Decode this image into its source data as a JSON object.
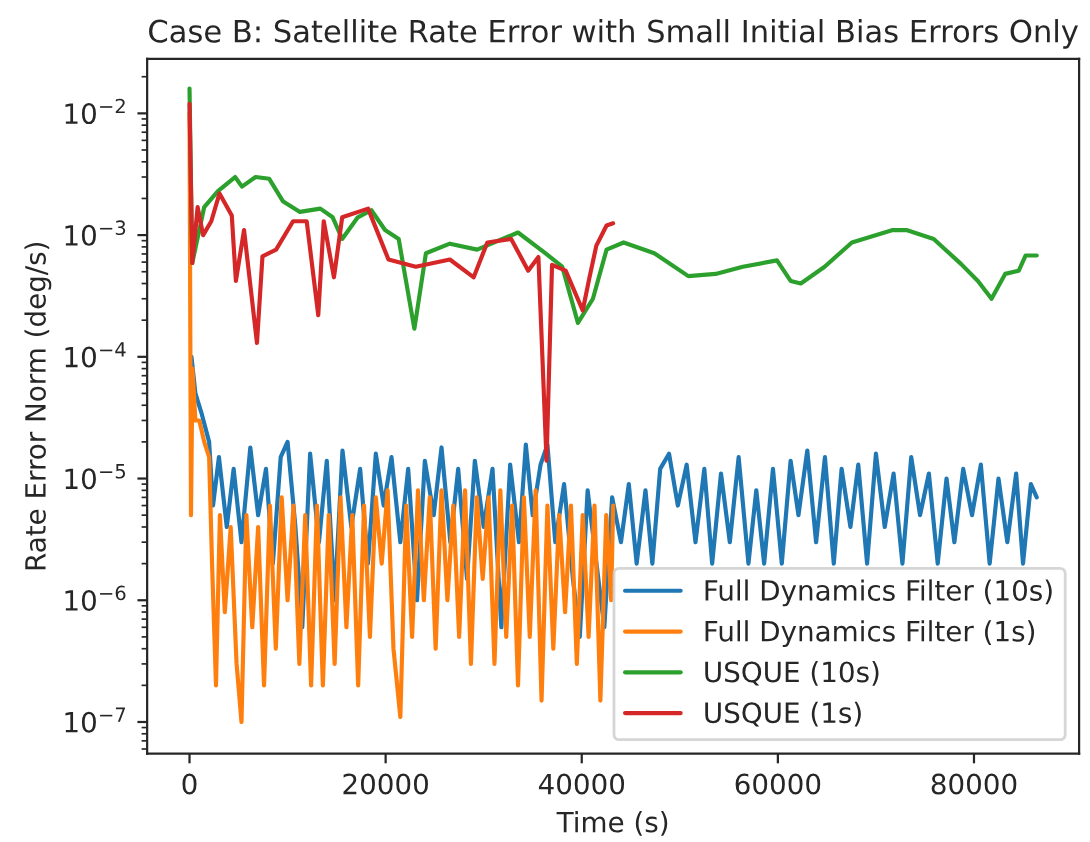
{
  "chart_data": {
    "type": "line",
    "title": "Case B: Satellite Rate Error with Small Initial Bias Errors Only",
    "xlabel": "Time (s)",
    "ylabel": "Rate Error Norm (deg/s)",
    "log": "y",
    "legend": "bottom right",
    "grid": false,
    "xlim": [
      -4320,
      90720
    ],
    "xticks": [
      0,
      20000,
      40000,
      60000,
      80000
    ],
    "ylim": [
      5.5e-08,
      0.028
    ],
    "yticks": [
      {
        "value": 1e-07,
        "label": "10$^{−7}$"
      },
      {
        "value": 1e-06,
        "label": "10$^{−6}$"
      },
      {
        "value": 1e-05,
        "label": "10$^{−5}$"
      },
      {
        "value": 0.0001,
        "label": "10$^{−4}$"
      },
      {
        "value": 0.001,
        "label": "10$^{−3}$"
      },
      {
        "value": 0.01,
        "label": "10$^{−2}$"
      }
    ],
    "series": [
      {
        "name": "Full Dynamics Filter (10s)",
        "color": "#1f77b4",
        "x": [
          200,
          600,
          1200,
          2000,
          2400,
          3000,
          3800,
          4500,
          5300,
          6200,
          7000,
          7800,
          8500,
          9300,
          10000,
          10800,
          11500,
          12300,
          13200,
          14000,
          14800,
          15600,
          16500,
          17400,
          18200,
          19000,
          19800,
          20600,
          21500,
          22300,
          23200,
          24000,
          24900,
          25700,
          26600,
          27400,
          28300,
          29100,
          30000,
          30900,
          31800,
          32700,
          33600,
          34300,
          35000,
          35800,
          36500,
          37300,
          38200,
          39100,
          39800,
          40600,
          41500,
          42300,
          43100,
          44000,
          44800,
          45600,
          46500,
          47200,
          48000,
          48900,
          49800,
          50700,
          51600,
          52500,
          53300,
          54200,
          55100,
          56000,
          57000,
          57800,
          58600,
          59500,
          60400,
          61300,
          62100,
          63000,
          63900,
          64800,
          65700,
          66500,
          67400,
          68200,
          69100,
          70000,
          70900,
          71800,
          72700,
          73600,
          74500,
          75400,
          76300,
          77200,
          78000,
          78900,
          79800,
          80700,
          81600,
          82500,
          83400,
          84300,
          85000,
          85800,
          86400
        ],
        "values": [
          0.0001,
          5e-05,
          3.5e-05,
          2e-05,
          6e-06,
          1.5e-05,
          4e-06,
          1.2e-05,
          3e-06,
          1.8e-05,
          5e-06,
          1.2e-05,
          2e-06,
          1.5e-05,
          2e-05,
          4e-06,
          6e-07,
          1.6e-05,
          3e-06,
          1.4e-05,
          1e-06,
          1.7e-05,
          4e-06,
          1.2e-05,
          2e-06,
          1.6e-05,
          6e-06,
          1.5e-05,
          3e-06,
          1.2e-05,
          1e-06,
          1.4e-05,
          5e-06,
          1.8e-05,
          3e-06,
          1.2e-05,
          1.5e-06,
          1.4e-05,
          4e-06,
          1.2e-05,
          6e-07,
          1.3e-05,
          3e-06,
          1.9e-05,
          5e-06,
          1.3e-05,
          1.9e-05,
          3e-06,
          9e-06,
          1.5e-06,
          5e-07,
          8e-06,
          2e-06,
          6e-07,
          7e-06,
          3e-06,
          9e-06,
          2e-06,
          8e-06,
          2e-06,
          1.2e-05,
          1.6e-05,
          6e-06,
          1.3e-05,
          3e-06,
          1.2e-05,
          2e-06,
          1.1e-05,
          3e-06,
          1.5e-05,
          2e-06,
          8e-06,
          2e-06,
          1.2e-05,
          2e-06,
          1.4e-05,
          5e-06,
          1.7e-05,
          3e-06,
          1.5e-05,
          2e-06,
          1.2e-05,
          4e-06,
          1.3e-05,
          2e-06,
          1.6e-05,
          4e-06,
          1.1e-05,
          2e-06,
          1.5e-05,
          5e-06,
          1.1e-05,
          2e-06,
          1e-05,
          3e-06,
          1.2e-05,
          5e-06,
          1.3e-05,
          2e-06,
          1e-05,
          3e-06,
          1.1e-05,
          2e-06,
          9e-06,
          7e-06
        ]
      },
      {
        "name": "Full Dynamics Filter (1s)",
        "color": "#ff7f0e",
        "x": [
          0,
          150,
          300,
          600,
          1000,
          1500,
          2000,
          2300,
          2700,
          3100,
          3600,
          4200,
          4800,
          5300,
          5800,
          6400,
          7000,
          7600,
          8200,
          8800,
          9400,
          10000,
          10600,
          11200,
          11800,
          12400,
          13000,
          13600,
          14200,
          14800,
          15400,
          16000,
          16600,
          17200,
          17800,
          18400,
          19000,
          19600,
          20200,
          20800,
          21500,
          22100,
          22700,
          23300,
          23900,
          24500,
          25100,
          25700,
          26300,
          26900,
          27500,
          28100,
          28700,
          29300,
          29900,
          30500,
          31100,
          31700,
          32300,
          32900,
          33500,
          34100,
          34700,
          35300,
          35900,
          36500,
          37100,
          37700,
          38300,
          38900,
          39500,
          40100,
          40700,
          41300,
          41900,
          42500,
          43000,
          43200
        ],
        "values": [
          0.01,
          5e-06,
          8e-05,
          3e-05,
          3e-05,
          2e-05,
          1.5e-05,
          2e-06,
          2e-07,
          5e-06,
          8e-07,
          4e-06,
          3e-07,
          1e-07,
          5e-06,
          6e-07,
          4e-06,
          2e-07,
          6e-06,
          4e-07,
          7e-06,
          1e-06,
          6e-06,
          3e-07,
          5e-06,
          2e-07,
          6e-06,
          2e-07,
          5e-06,
          3e-07,
          7e-06,
          6e-07,
          5e-06,
          2e-07,
          6e-06,
          5e-07,
          7e-06,
          2e-06,
          8e-06,
          4e-07,
          1.1e-07,
          6e-06,
          5e-07,
          8e-06,
          1e-06,
          7e-06,
          4e-07,
          8e-06,
          1e-06,
          6e-06,
          5e-07,
          8e-06,
          3e-07,
          7e-06,
          1.5e-06,
          7e-06,
          3e-07,
          8e-06,
          5e-07,
          6e-06,
          2e-07,
          7e-06,
          5e-07,
          8e-06,
          1.5e-07,
          6e-06,
          4e-07,
          5e-06,
          8e-07,
          6e-06,
          3e-07,
          5e-06,
          5e-07,
          6e-06,
          1.5e-07,
          5e-06,
          1e-06,
          6e-06
        ]
      },
      {
        "name": "USQUE (10s)",
        "color": "#2ca02c",
        "x": [
          0,
          280,
          1500,
          2900,
          4650,
          5350,
          6740,
          8130,
          9520,
          11260,
          13340,
          14600,
          15570,
          17160,
          18550,
          19940,
          21330,
          22930,
          24110,
          26550,
          29330,
          33500,
          36280,
          38010,
          39610,
          41140,
          42530,
          44270,
          47400,
          50870,
          53650,
          56430,
          59910,
          61300,
          62340,
          64770,
          67550,
          71720,
          73110,
          75890,
          78670,
          80400,
          81790,
          83180,
          84570,
          85270,
          86400
        ],
        "values": [
          0.016,
          0.00059,
          0.0017,
          0.0023,
          0.003,
          0.0025,
          0.003,
          0.0029,
          0.0019,
          0.00155,
          0.00165,
          0.0014,
          0.00093,
          0.0014,
          0.0016,
          0.0011,
          0.00093,
          0.00017,
          0.00071,
          0.00085,
          0.00076,
          0.00105,
          0.00071,
          0.00055,
          0.00019,
          0.0003,
          0.00076,
          0.00087,
          0.00071,
          0.00046,
          0.00048,
          0.00055,
          0.00062,
          0.00042,
          0.0004,
          0.00055,
          0.00087,
          0.0011,
          0.0011,
          0.00093,
          0.00058,
          0.00042,
          0.0003,
          0.00048,
          0.00051,
          0.00068,
          0.00068
        ]
      },
      {
        "name": "USQUE (1s)",
        "color": "#d62728",
        "x": [
          0,
          280,
          830,
          1390,
          2220,
          3060,
          4310,
          4730,
          5560,
          6880,
          7440,
          8830,
          10560,
          11950,
          13130,
          13690,
          14730,
          15570,
          18210,
          20290,
          23070,
          26550,
          28980,
          30370,
          32800,
          34540,
          35580,
          36410,
          36970,
          38360,
          40100,
          40790,
          41490,
          42530,
          43200
        ],
        "values": [
          0.012,
          0.00059,
          0.0017,
          0.001,
          0.0013,
          0.0022,
          0.00145,
          0.00042,
          0.0011,
          0.00013,
          0.00067,
          0.00076,
          0.0013,
          0.0013,
          0.00022,
          0.0013,
          0.00045,
          0.0014,
          0.00165,
          0.00063,
          0.00055,
          0.00063,
          0.00045,
          0.00087,
          0.00093,
          0.00051,
          0.00066,
          1.4e-05,
          0.00057,
          0.00051,
          0.00024,
          0.00045,
          0.00082,
          0.0012,
          0.00125
        ]
      }
    ]
  }
}
